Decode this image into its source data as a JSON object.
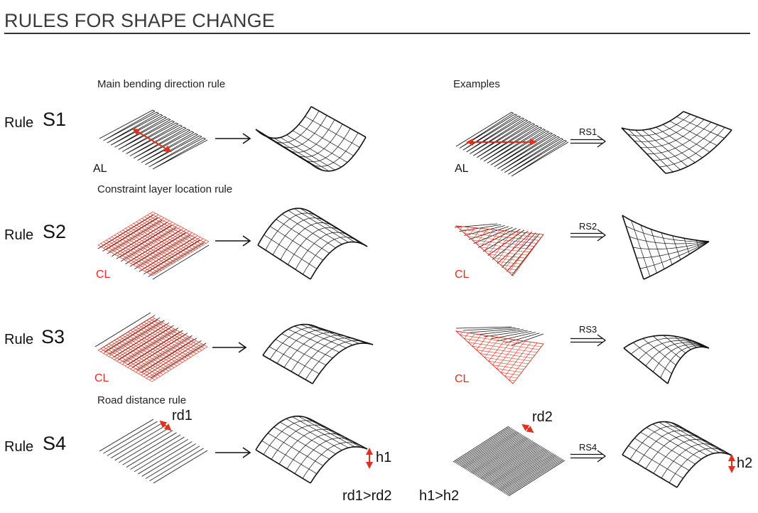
{
  "header": {
    "title": "RULES FOR SHAPE CHANGE"
  },
  "sections": {
    "main_bending": "Main bending direction rule",
    "examples": "Examples",
    "constraint": "Constraint layer location rule",
    "road": "Road distance rule"
  },
  "rules": [
    {
      "word": "Rule",
      "id": "S1",
      "layer": "AL",
      "example_layer": "AL",
      "arrow": "RS1"
    },
    {
      "word": "Rule",
      "id": "S2",
      "layer": "CL",
      "example_layer": "CL",
      "arrow": "RS2"
    },
    {
      "word": "Rule",
      "id": "S3",
      "layer": "CL",
      "example_layer": "CL",
      "arrow": "RS3"
    },
    {
      "word": "Rule",
      "id": "S4",
      "arrow": "RS4"
    }
  ],
  "road": {
    "rd1": "rd1",
    "rd2": "rd2",
    "h1": "h1",
    "h2": "h2",
    "cmp_rd": "rd1>rd2",
    "cmp_h": "h1>h2"
  },
  "colors": {
    "accent": "#e0301e",
    "line": "#111111"
  }
}
